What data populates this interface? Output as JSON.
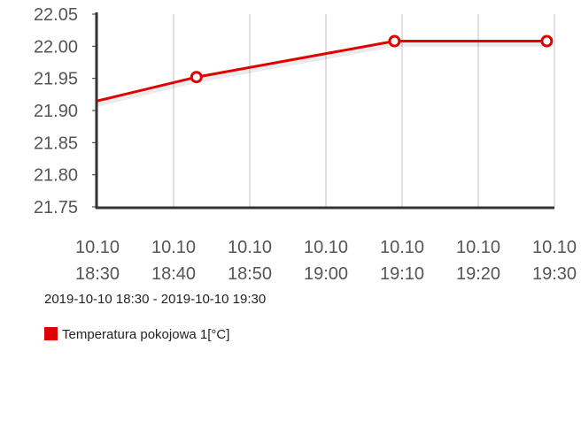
{
  "chart_data": {
    "type": "line",
    "subtitle": "2019-10-10 18:30 - 2019-10-10 19:30",
    "x": [
      "2019-10-10 18:30",
      "2019-10-10 18:43",
      "2019-10-10 19:09",
      "2019-10-10 19:29"
    ],
    "series": [
      {
        "name": "Temperatura pokojowa 1[°C]",
        "color": "#e00000",
        "values": [
          21.915,
          21.952,
          22.008,
          22.008
        ]
      }
    ],
    "xlim": [
      "2019-10-10 18:30",
      "2019-10-10 19:30"
    ],
    "xticks": [
      {
        "value": "2019-10-10 18:30",
        "label": "10.10 18:30"
      },
      {
        "value": "2019-10-10 18:40",
        "label": "10.10 18:40"
      },
      {
        "value": "2019-10-10 18:50",
        "label": "10.10 18:50"
      },
      {
        "value": "2019-10-10 19:00",
        "label": "10.10 19:00"
      },
      {
        "value": "2019-10-10 19:10",
        "label": "10.10 19:10"
      },
      {
        "value": "2019-10-10 19:20",
        "label": "10.10 19:20"
      },
      {
        "value": "2019-10-10 19:30",
        "label": "10.10 19:30"
      }
    ],
    "ylim": [
      21.75,
      22.05
    ],
    "yticks": [
      21.75,
      {
        "value": 21.8,
        "label": "21.80"
      },
      21.85,
      {
        "value": 21.9,
        "label": "21.90"
      },
      21.95,
      {
        "value": 22,
        "label": "22.00"
      },
      22.05
    ],
    "grid": true
  }
}
